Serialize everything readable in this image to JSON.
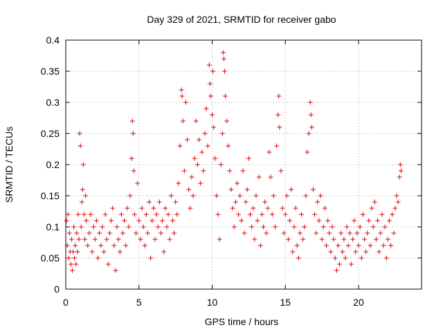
{
  "chart_data": {
    "type": "scatter",
    "title": "Day 329 of 2021, SRMTID for receiver gabo",
    "xlabel": "GPS time / hours",
    "ylabel": "SRMTID / TECUs",
    "xlim": [
      0,
      24.3
    ],
    "ylim": [
      0,
      0.4
    ],
    "x_ticks": [
      0,
      5,
      10,
      15,
      20
    ],
    "x_tick_labels": [
      "0",
      "5",
      "10",
      "15",
      "20"
    ],
    "y_ticks": [
      0,
      0.05,
      0.1,
      0.15,
      0.2,
      0.25,
      0.3,
      0.35,
      0.4
    ],
    "y_tick_labels": [
      "0",
      "0.05",
      "0.1",
      "0.15",
      "0.2",
      "0.25",
      "0.3",
      "0.35",
      "0.4"
    ],
    "grid": true,
    "series": [
      {
        "name": "SRMTID",
        "color": "#e00000",
        "marker": "plus",
        "points": [
          [
            0.05,
            0.11
          ],
          [
            0.1,
            0.07
          ],
          [
            0.15,
            0.12
          ],
          [
            0.2,
            0.05
          ],
          [
            0.25,
            0.09
          ],
          [
            0.3,
            0.06
          ],
          [
            0.35,
            0.04
          ],
          [
            0.4,
            0.08
          ],
          [
            0.45,
            0.03
          ],
          [
            0.5,
            0.06
          ],
          [
            0.55,
            0.1
          ],
          [
            0.6,
            0.05
          ],
          [
            0.65,
            0.07
          ],
          [
            0.7,
            0.04
          ],
          [
            0.75,
            0.09
          ],
          [
            0.8,
            0.06
          ],
          [
            0.85,
            0.12
          ],
          [
            0.9,
            0.08
          ],
          [
            0.95,
            0.25
          ],
          [
            1.0,
            0.23
          ],
          [
            1.05,
            0.1
          ],
          [
            1.1,
            0.14
          ],
          [
            1.15,
            0.16
          ],
          [
            1.2,
            0.2
          ],
          [
            1.25,
            0.12
          ],
          [
            1.3,
            0.08
          ],
          [
            1.35,
            0.15
          ],
          [
            1.4,
            0.11
          ],
          [
            1.5,
            0.07
          ],
          [
            1.6,
            0.09
          ],
          [
            1.7,
            0.12
          ],
          [
            1.8,
            0.06
          ],
          [
            1.9,
            0.1
          ],
          [
            2.0,
            0.08
          ],
          [
            2.1,
            0.11
          ],
          [
            2.2,
            0.05
          ],
          [
            2.3,
            0.09
          ],
          [
            2.4,
            0.07
          ],
          [
            2.5,
            0.1
          ],
          [
            2.6,
            0.06
          ],
          [
            2.7,
            0.12
          ],
          [
            2.8,
            0.08
          ],
          [
            2.9,
            0.04
          ],
          [
            3.0,
            0.09
          ],
          [
            3.1,
            0.11
          ],
          [
            3.2,
            0.13
          ],
          [
            3.3,
            0.07
          ],
          [
            3.4,
            0.03
          ],
          [
            3.5,
            0.1
          ],
          [
            3.6,
            0.08
          ],
          [
            3.7,
            0.06
          ],
          [
            3.8,
            0.12
          ],
          [
            3.9,
            0.09
          ],
          [
            4.0,
            0.11
          ],
          [
            4.1,
            0.07
          ],
          [
            4.2,
            0.13
          ],
          [
            4.3,
            0.1
          ],
          [
            4.4,
            0.15
          ],
          [
            4.5,
            0.21
          ],
          [
            4.55,
            0.27
          ],
          [
            4.6,
            0.25
          ],
          [
            4.65,
            0.19
          ],
          [
            4.7,
            0.12
          ],
          [
            4.8,
            0.09
          ],
          [
            4.9,
            0.17
          ],
          [
            5.0,
            0.11
          ],
          [
            5.1,
            0.08
          ],
          [
            5.2,
            0.13
          ],
          [
            5.3,
            0.1
          ],
          [
            5.4,
            0.07
          ],
          [
            5.5,
            0.12
          ],
          [
            5.6,
            0.09
          ],
          [
            5.7,
            0.14
          ],
          [
            5.8,
            0.05
          ],
          [
            5.9,
            0.11
          ],
          [
            6.0,
            0.13
          ],
          [
            6.1,
            0.08
          ],
          [
            6.2,
            0.12
          ],
          [
            6.3,
            0.1
          ],
          [
            6.4,
            0.14
          ],
          [
            6.5,
            0.09
          ],
          [
            6.6,
            0.11
          ],
          [
            6.7,
            0.06
          ],
          [
            6.8,
            0.13
          ],
          [
            6.9,
            0.1
          ],
          [
            7.0,
            0.12
          ],
          [
            7.1,
            0.08
          ],
          [
            7.2,
            0.15
          ],
          [
            7.3,
            0.11
          ],
          [
            7.4,
            0.09
          ],
          [
            7.5,
            0.14
          ],
          [
            7.6,
            0.12
          ],
          [
            7.7,
            0.17
          ],
          [
            7.8,
            0.23
          ],
          [
            7.9,
            0.32
          ],
          [
            7.95,
            0.31
          ],
          [
            8.0,
            0.27
          ],
          [
            8.1,
            0.19
          ],
          [
            8.2,
            0.3
          ],
          [
            8.3,
            0.24
          ],
          [
            8.4,
            0.16
          ],
          [
            8.5,
            0.13
          ],
          [
            8.6,
            0.18
          ],
          [
            8.7,
            0.15
          ],
          [
            8.8,
            0.21
          ],
          [
            8.9,
            0.27
          ],
          [
            9.0,
            0.2
          ],
          [
            9.1,
            0.24
          ],
          [
            9.2,
            0.17
          ],
          [
            9.3,
            0.22
          ],
          [
            9.4,
            0.19
          ],
          [
            9.5,
            0.25
          ],
          [
            9.6,
            0.29
          ],
          [
            9.7,
            0.23
          ],
          [
            9.8,
            0.36
          ],
          [
            9.85,
            0.33
          ],
          [
            9.9,
            0.31
          ],
          [
            10.0,
            0.28
          ],
          [
            10.05,
            0.35
          ],
          [
            10.1,
            0.26
          ],
          [
            10.2,
            0.21
          ],
          [
            10.3,
            0.15
          ],
          [
            10.4,
            0.12
          ],
          [
            10.5,
            0.08
          ],
          [
            10.6,
            0.2
          ],
          [
            10.7,
            0.25
          ],
          [
            10.75,
            0.38
          ],
          [
            10.8,
            0.37
          ],
          [
            10.85,
            0.35
          ],
          [
            10.9,
            0.31
          ],
          [
            11.0,
            0.27
          ],
          [
            11.1,
            0.23
          ],
          [
            11.2,
            0.19
          ],
          [
            11.3,
            0.16
          ],
          [
            11.4,
            0.13
          ],
          [
            11.5,
            0.1
          ],
          [
            11.6,
            0.14
          ],
          [
            11.7,
            0.17
          ],
          [
            11.8,
            0.12
          ],
          [
            11.9,
            0.15
          ],
          [
            12.0,
            0.11
          ],
          [
            12.1,
            0.19
          ],
          [
            12.2,
            0.09
          ],
          [
            12.3,
            0.14
          ],
          [
            12.4,
            0.16
          ],
          [
            12.5,
            0.21
          ],
          [
            12.6,
            0.12
          ],
          [
            12.7,
            0.1
          ],
          [
            12.8,
            0.13
          ],
          [
            12.9,
            0.08
          ],
          [
            13.0,
            0.15
          ],
          [
            13.1,
            0.11
          ],
          [
            13.2,
            0.18
          ],
          [
            13.3,
            0.07
          ],
          [
            13.4,
            0.12
          ],
          [
            13.5,
            0.1
          ],
          [
            13.6,
            0.14
          ],
          [
            13.7,
            0.09
          ],
          [
            13.8,
            0.13
          ],
          [
            13.9,
            0.22
          ],
          [
            14.0,
            0.18
          ],
          [
            14.1,
            0.12
          ],
          [
            14.2,
            0.15
          ],
          [
            14.3,
            0.1
          ],
          [
            14.4,
            0.23
          ],
          [
            14.5,
            0.28
          ],
          [
            14.55,
            0.31
          ],
          [
            14.6,
            0.26
          ],
          [
            14.7,
            0.19
          ],
          [
            14.8,
            0.13
          ],
          [
            14.9,
            0.09
          ],
          [
            15.0,
            0.12
          ],
          [
            15.1,
            0.15
          ],
          [
            15.2,
            0.08
          ],
          [
            15.3,
            0.11
          ],
          [
            15.4,
            0.16
          ],
          [
            15.5,
            0.06
          ],
          [
            15.6,
            0.1
          ],
          [
            15.7,
            0.13
          ],
          [
            15.8,
            0.07
          ],
          [
            15.9,
            0.05
          ],
          [
            16.0,
            0.09
          ],
          [
            16.1,
            0.12
          ],
          [
            16.2,
            0.08
          ],
          [
            16.3,
            0.1
          ],
          [
            16.4,
            0.15
          ],
          [
            16.5,
            0.22
          ],
          [
            16.6,
            0.25
          ],
          [
            16.7,
            0.3
          ],
          [
            16.75,
            0.28
          ],
          [
            16.8,
            0.26
          ],
          [
            16.9,
            0.16
          ],
          [
            17.0,
            0.12
          ],
          [
            17.1,
            0.09
          ],
          [
            17.2,
            0.14
          ],
          [
            17.3,
            0.11
          ],
          [
            17.4,
            0.15
          ],
          [
            17.5,
            0.08
          ],
          [
            17.6,
            0.1
          ],
          [
            17.7,
            0.13
          ],
          [
            17.8,
            0.07
          ],
          [
            17.9,
            0.11
          ],
          [
            18.0,
            0.09
          ],
          [
            18.1,
            0.06
          ],
          [
            18.2,
            0.1
          ],
          [
            18.3,
            0.08
          ],
          [
            18.4,
            0.05
          ],
          [
            18.5,
            0.03
          ],
          [
            18.6,
            0.07
          ],
          [
            18.7,
            0.04
          ],
          [
            18.8,
            0.09
          ],
          [
            18.9,
            0.06
          ],
          [
            19.0,
            0.08
          ],
          [
            19.1,
            0.05
          ],
          [
            19.2,
            0.1
          ],
          [
            19.3,
            0.07
          ],
          [
            19.4,
            0.09
          ],
          [
            19.5,
            0.04
          ],
          [
            19.6,
            0.08
          ],
          [
            19.7,
            0.11
          ],
          [
            19.8,
            0.06
          ],
          [
            19.9,
            0.09
          ],
          [
            20.0,
            0.07
          ],
          [
            20.1,
            0.1
          ],
          [
            20.2,
            0.05
          ],
          [
            20.3,
            0.12
          ],
          [
            20.4,
            0.08
          ],
          [
            20.5,
            0.06
          ],
          [
            20.6,
            0.09
          ],
          [
            20.7,
            0.11
          ],
          [
            20.8,
            0.07
          ],
          [
            20.9,
            0.13
          ],
          [
            21.0,
            0.1
          ],
          [
            21.1,
            0.14
          ],
          [
            21.2,
            0.08
          ],
          [
            21.3,
            0.11
          ],
          [
            21.4,
            0.06
          ],
          [
            21.5,
            0.09
          ],
          [
            21.6,
            0.12
          ],
          [
            21.7,
            0.07
          ],
          [
            21.8,
            0.1
          ],
          [
            21.9,
            0.05
          ],
          [
            22.0,
            0.08
          ],
          [
            22.1,
            0.11
          ],
          [
            22.2,
            0.07
          ],
          [
            22.3,
            0.12
          ],
          [
            22.4,
            0.09
          ],
          [
            22.5,
            0.13
          ],
          [
            22.6,
            0.15
          ],
          [
            22.7,
            0.14
          ],
          [
            22.8,
            0.18
          ],
          [
            22.85,
            0.2
          ],
          [
            22.9,
            0.19
          ]
        ]
      }
    ]
  }
}
